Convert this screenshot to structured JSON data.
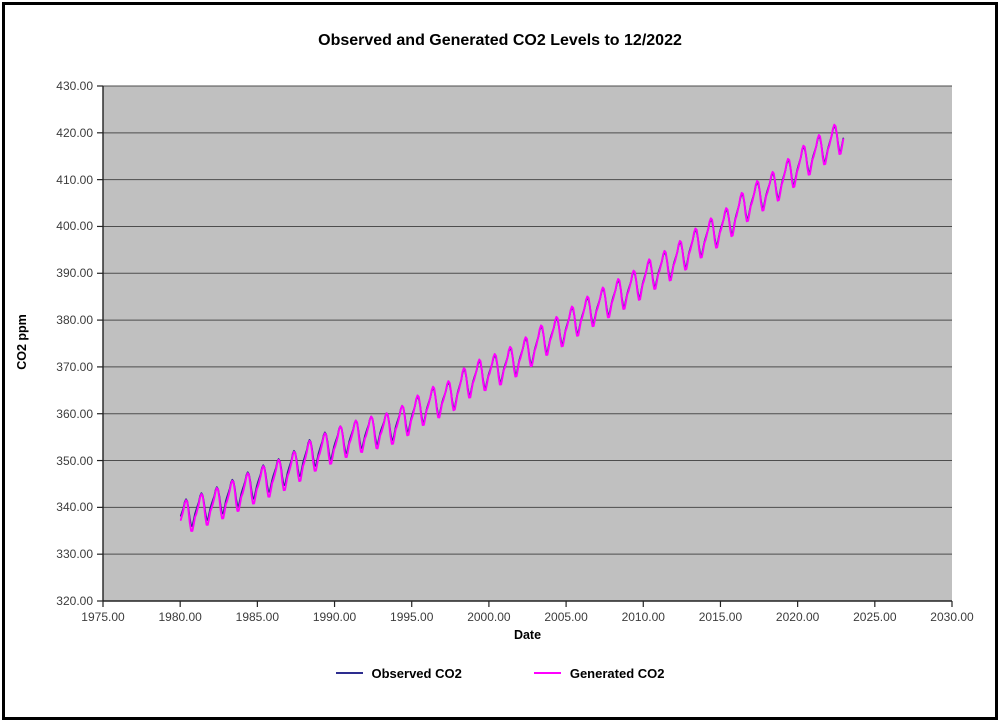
{
  "window": {
    "background_color": "#ffffff",
    "border_color": "#000000"
  },
  "chart_data": {
    "type": "line",
    "title": "Observed and Generated CO2 Levels to 12/2022",
    "xlabel": "Date",
    "ylabel": "CO2 ppm",
    "grid": "horizontal-only",
    "legend_position": "bottom-center",
    "plot_bg_color": "#c0c0c0",
    "gridline_color": "#4d4d4d",
    "axis_color": "#222222",
    "tick_text_color": "#3c3c3c",
    "x_axis": {
      "min": 1975,
      "max": 2030,
      "tick_step": 5,
      "tick_values": [
        1975,
        1980,
        1985,
        1990,
        1995,
        2000,
        2005,
        2010,
        2015,
        2020,
        2025,
        2030
      ],
      "tick_labels": [
        "1975.00",
        "1980.00",
        "1985.00",
        "1990.00",
        "1995.00",
        "2000.00",
        "2005.00",
        "2010.00",
        "2015.00",
        "2020.00",
        "2025.00",
        "2030.00"
      ]
    },
    "y_axis": {
      "min": 320,
      "max": 430,
      "tick_step": 10,
      "tick_values": [
        320,
        330,
        340,
        350,
        360,
        370,
        380,
        390,
        400,
        410,
        420,
        430
      ],
      "tick_labels": [
        "320.00",
        "330.00",
        "340.00",
        "350.00",
        "360.00",
        "370.00",
        "380.00",
        "390.00",
        "400.00",
        "410.00",
        "420.00",
        "430.00"
      ]
    },
    "data_extent": {
      "x_start": 1980.04,
      "x_end": 2022.96,
      "y_min_approx": 335.5,
      "y_max_approx": 421.5
    },
    "series": [
      {
        "name": "Observed CO2",
        "color": "#2D2D8F",
        "width": 1.7,
        "years": [
          1980,
          1981,
          1982,
          1983,
          1984,
          1985,
          1986,
          1987,
          1988,
          1989,
          1990,
          1991,
          1992,
          1993,
          1994,
          1995,
          1996,
          1997,
          1998,
          1999,
          2000,
          2001,
          2002,
          2003,
          2004,
          2005,
          2006,
          2007,
          2008,
          2009,
          2010,
          2011,
          2012,
          2013,
          2014,
          2015,
          2016,
          2017,
          2018,
          2019,
          2020,
          2021,
          2022
        ],
        "annual_means": [
          338.8,
          340.1,
          341.4,
          343.0,
          344.6,
          346.1,
          347.4,
          349.2,
          351.6,
          353.1,
          354.4,
          355.6,
          356.4,
          357.1,
          358.8,
          360.8,
          362.6,
          363.7,
          366.7,
          368.4,
          369.5,
          371.1,
          373.2,
          375.8,
          377.5,
          379.8,
          381.9,
          383.8,
          385.6,
          387.4,
          389.9,
          391.6,
          393.8,
          396.5,
          398.6,
          400.8,
          404.2,
          406.6,
          408.5,
          411.4,
          414.2,
          416.4,
          418.6
        ],
        "seasonal_anomaly_by_month": [
          0.0,
          0.7,
          1.4,
          2.6,
          3.1,
          2.5,
          0.9,
          -1.3,
          -3.0,
          -3.2,
          -2.0,
          -0.8
        ]
      },
      {
        "name": "Generated CO2",
        "color": "#FF00FF",
        "width": 1.9,
        "years": [
          1980,
          1981,
          1982,
          1983,
          1984,
          1985,
          1986,
          1987,
          1988,
          1989,
          1990,
          1991,
          1992,
          1993,
          1994,
          1995,
          1996,
          1997,
          1998,
          1999,
          2000,
          2001,
          2002,
          2003,
          2004,
          2005,
          2006,
          2007,
          2008,
          2009,
          2010,
          2011,
          2012,
          2013,
          2014,
          2015,
          2016,
          2017,
          2018,
          2019,
          2020,
          2021,
          2022
        ],
        "annual_means": [
          338.3,
          339.6,
          340.9,
          342.5,
          344.1,
          345.6,
          346.9,
          348.7,
          351.1,
          352.6,
          354.1,
          355.3,
          356.1,
          356.8,
          358.5,
          360.8,
          362.6,
          363.7,
          366.7,
          368.4,
          369.5,
          371.1,
          373.2,
          375.8,
          377.5,
          379.8,
          381.9,
          383.8,
          385.6,
          387.4,
          389.9,
          391.6,
          393.8,
          396.5,
          398.6,
          400.8,
          404.2,
          406.6,
          408.5,
          411.4,
          414.2,
          416.4,
          418.6
        ],
        "seasonal_anomaly_by_month": [
          -0.4,
          0.5,
          1.5,
          2.8,
          3.4,
          2.9,
          0.9,
          -1.8,
          -3.6,
          -3.7,
          -2.4,
          -1.0
        ]
      }
    ]
  }
}
